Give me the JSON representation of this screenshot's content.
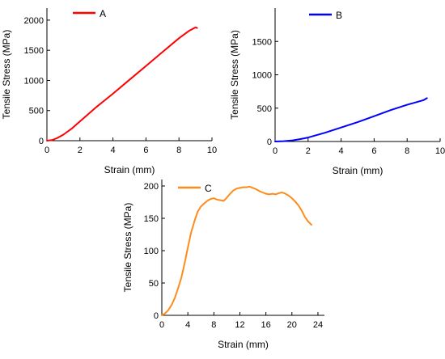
{
  "chart_data": [
    {
      "id": "A",
      "type": "line",
      "xlabel": "Strain (mm)",
      "ylabel": "Tensile Stress (MPa)",
      "xlim": [
        0,
        10
      ],
      "ylim": [
        0,
        2200
      ],
      "xticks": [
        0,
        2,
        4,
        6,
        8,
        10
      ],
      "yticks": [
        0,
        500,
        1000,
        1500,
        2000
      ],
      "legend_position": "top-left",
      "series": [
        {
          "name": "A",
          "color": "#ff0000",
          "x": [
            0,
            0.3,
            0.6,
            1.0,
            1.5,
            2.0,
            2.5,
            3.0,
            4.0,
            5.0,
            6.0,
            7.0,
            8.0,
            8.6,
            9.0,
            9.1
          ],
          "y": [
            0,
            10,
            40,
            100,
            200,
            320,
            440,
            560,
            780,
            1010,
            1240,
            1470,
            1700,
            1820,
            1880,
            1870
          ]
        }
      ]
    },
    {
      "id": "B",
      "type": "line",
      "xlabel": "Strain (mm)",
      "ylabel": "Tensile Stress (MPa)",
      "xlim": [
        0,
        10
      ],
      "ylim": [
        0,
        2000
      ],
      "xticks": [
        0,
        2,
        4,
        6,
        8,
        10
      ],
      "yticks": [
        0,
        500,
        1000,
        1500
      ],
      "legend_position": "top-right",
      "series": [
        {
          "name": "B",
          "color": "#0000ff",
          "x": [
            0,
            0.5,
            1.0,
            1.5,
            2.0,
            3.0,
            4.0,
            5.0,
            6.0,
            7.0,
            8.0,
            9.0,
            9.2
          ],
          "y": [
            0,
            5,
            15,
            35,
            60,
            130,
            210,
            290,
            380,
            470,
            550,
            620,
            650
          ]
        }
      ]
    },
    {
      "id": "C",
      "type": "line",
      "xlabel": "Strain (mm)",
      "ylabel": "Tensile Stress (MPa)",
      "xlim": [
        0,
        25
      ],
      "ylim": [
        0,
        210
      ],
      "xticks": [
        0,
        4,
        8,
        12,
        16,
        20,
        24
      ],
      "yticks": [
        0,
        50,
        100,
        150,
        200
      ],
      "legend_position": "top-left",
      "series": [
        {
          "name": "C",
          "color": "#ff8c1a",
          "x": [
            0,
            0.5,
            1,
            1.5,
            2,
            2.5,
            3,
            3.5,
            4,
            4.5,
            5,
            5.5,
            6,
            6.5,
            7,
            7.5,
            8,
            8.5,
            9,
            9.5,
            10,
            10.5,
            11,
            11.5,
            12,
            12.5,
            13,
            13.5,
            14,
            14.5,
            15,
            15.5,
            16,
            16.5,
            17,
            17.5,
            18,
            18.5,
            19,
            19.5,
            20,
            20.5,
            21,
            21.5,
            22,
            22.5,
            23
          ],
          "y": [
            0,
            3,
            8,
            16,
            27,
            42,
            58,
            80,
            105,
            128,
            145,
            160,
            168,
            173,
            177,
            180,
            181,
            179,
            178,
            177,
            182,
            188,
            193,
            196,
            197,
            198,
            198,
            199,
            197,
            195,
            192,
            190,
            188,
            187,
            188,
            187,
            189,
            190,
            188,
            185,
            181,
            176,
            170,
            162,
            152,
            145,
            140
          ]
        }
      ]
    }
  ]
}
